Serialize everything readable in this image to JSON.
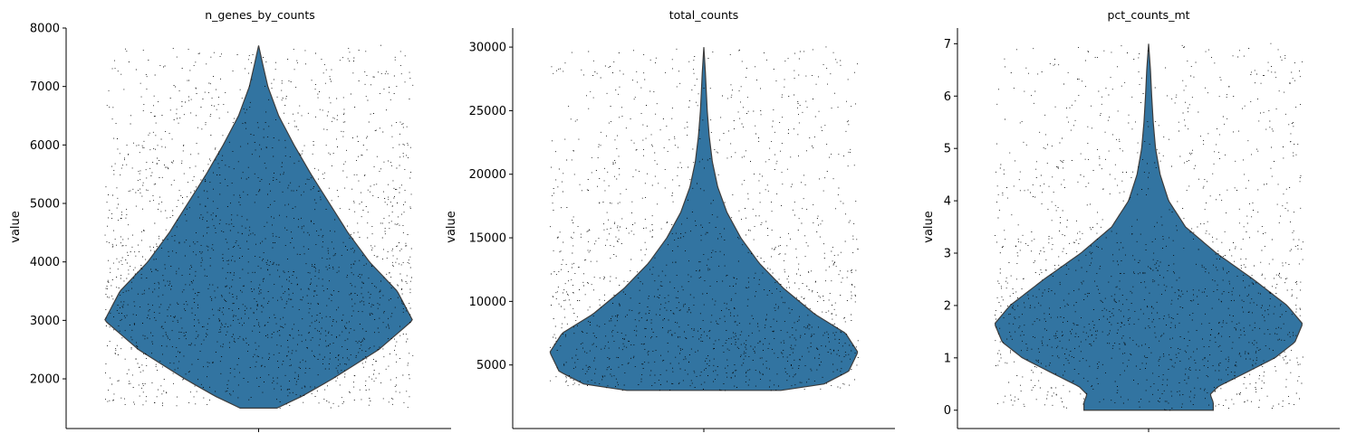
{
  "chart_data": [
    {
      "type": "violin",
      "title": "n_genes_by_counts",
      "xlabel": "",
      "ylabel": "value",
      "ylim": [
        1150,
        8000
      ],
      "yticks": [
        "2000",
        "3000",
        "4000",
        "5000",
        "6000",
        "7000",
        "8000"
      ],
      "data_range": [
        1500,
        7700
      ],
      "density_profile": [
        [
          1500,
          0.12
        ],
        [
          1700,
          0.28
        ],
        [
          2000,
          0.48
        ],
        [
          2500,
          0.78
        ],
        [
          3000,
          1.0
        ],
        [
          3500,
          0.9
        ],
        [
          4000,
          0.72
        ],
        [
          4500,
          0.58
        ],
        [
          5000,
          0.46
        ],
        [
          5500,
          0.34
        ],
        [
          6000,
          0.23
        ],
        [
          6500,
          0.13
        ],
        [
          7000,
          0.06
        ],
        [
          7400,
          0.025
        ],
        [
          7700,
          0.0
        ]
      ],
      "fill_color": "#3274a1",
      "grid": false
    },
    {
      "type": "violin",
      "title": "total_counts",
      "xlabel": "",
      "ylabel": "value",
      "ylim": [
        0,
        31500
      ],
      "yticks": [
        "5000",
        "10000",
        "15000",
        "20000",
        "25000",
        "30000"
      ],
      "data_range": [
        3000,
        30000
      ],
      "density_profile": [
        [
          3000,
          0.5
        ],
        [
          3500,
          0.78
        ],
        [
          4500,
          0.94
        ],
        [
          6000,
          1.0
        ],
        [
          7500,
          0.92
        ],
        [
          9000,
          0.72
        ],
        [
          11000,
          0.52
        ],
        [
          13000,
          0.36
        ],
        [
          15000,
          0.24
        ],
        [
          17000,
          0.15
        ],
        [
          19000,
          0.09
        ],
        [
          21000,
          0.055
        ],
        [
          23000,
          0.035
        ],
        [
          25000,
          0.022
        ],
        [
          28000,
          0.01
        ],
        [
          30000,
          0.0
        ]
      ],
      "fill_color": "#3274a1",
      "grid": false
    },
    {
      "type": "violin",
      "title": "pct_counts_mt",
      "xlabel": "",
      "ylabel": "value",
      "ylim": [
        -0.35,
        7.3
      ],
      "yticks": [
        "0",
        "1",
        "2",
        "3",
        "4",
        "5",
        "6",
        "7"
      ],
      "data_range": [
        0,
        7
      ],
      "density_profile": [
        [
          0.0,
          0.42
        ],
        [
          0.15,
          0.42
        ],
        [
          0.3,
          0.4
        ],
        [
          0.45,
          0.45
        ],
        [
          0.7,
          0.62
        ],
        [
          1.0,
          0.82
        ],
        [
          1.3,
          0.95
        ],
        [
          1.65,
          1.0
        ],
        [
          2.0,
          0.9
        ],
        [
          2.5,
          0.68
        ],
        [
          3.0,
          0.44
        ],
        [
          3.5,
          0.24
        ],
        [
          4.0,
          0.13
        ],
        [
          4.5,
          0.075
        ],
        [
          5.0,
          0.045
        ],
        [
          5.5,
          0.03
        ],
        [
          6.0,
          0.02
        ],
        [
          6.5,
          0.012
        ],
        [
          7.0,
          0.0
        ]
      ],
      "fill_color": "#3274a1",
      "grid": false
    }
  ]
}
